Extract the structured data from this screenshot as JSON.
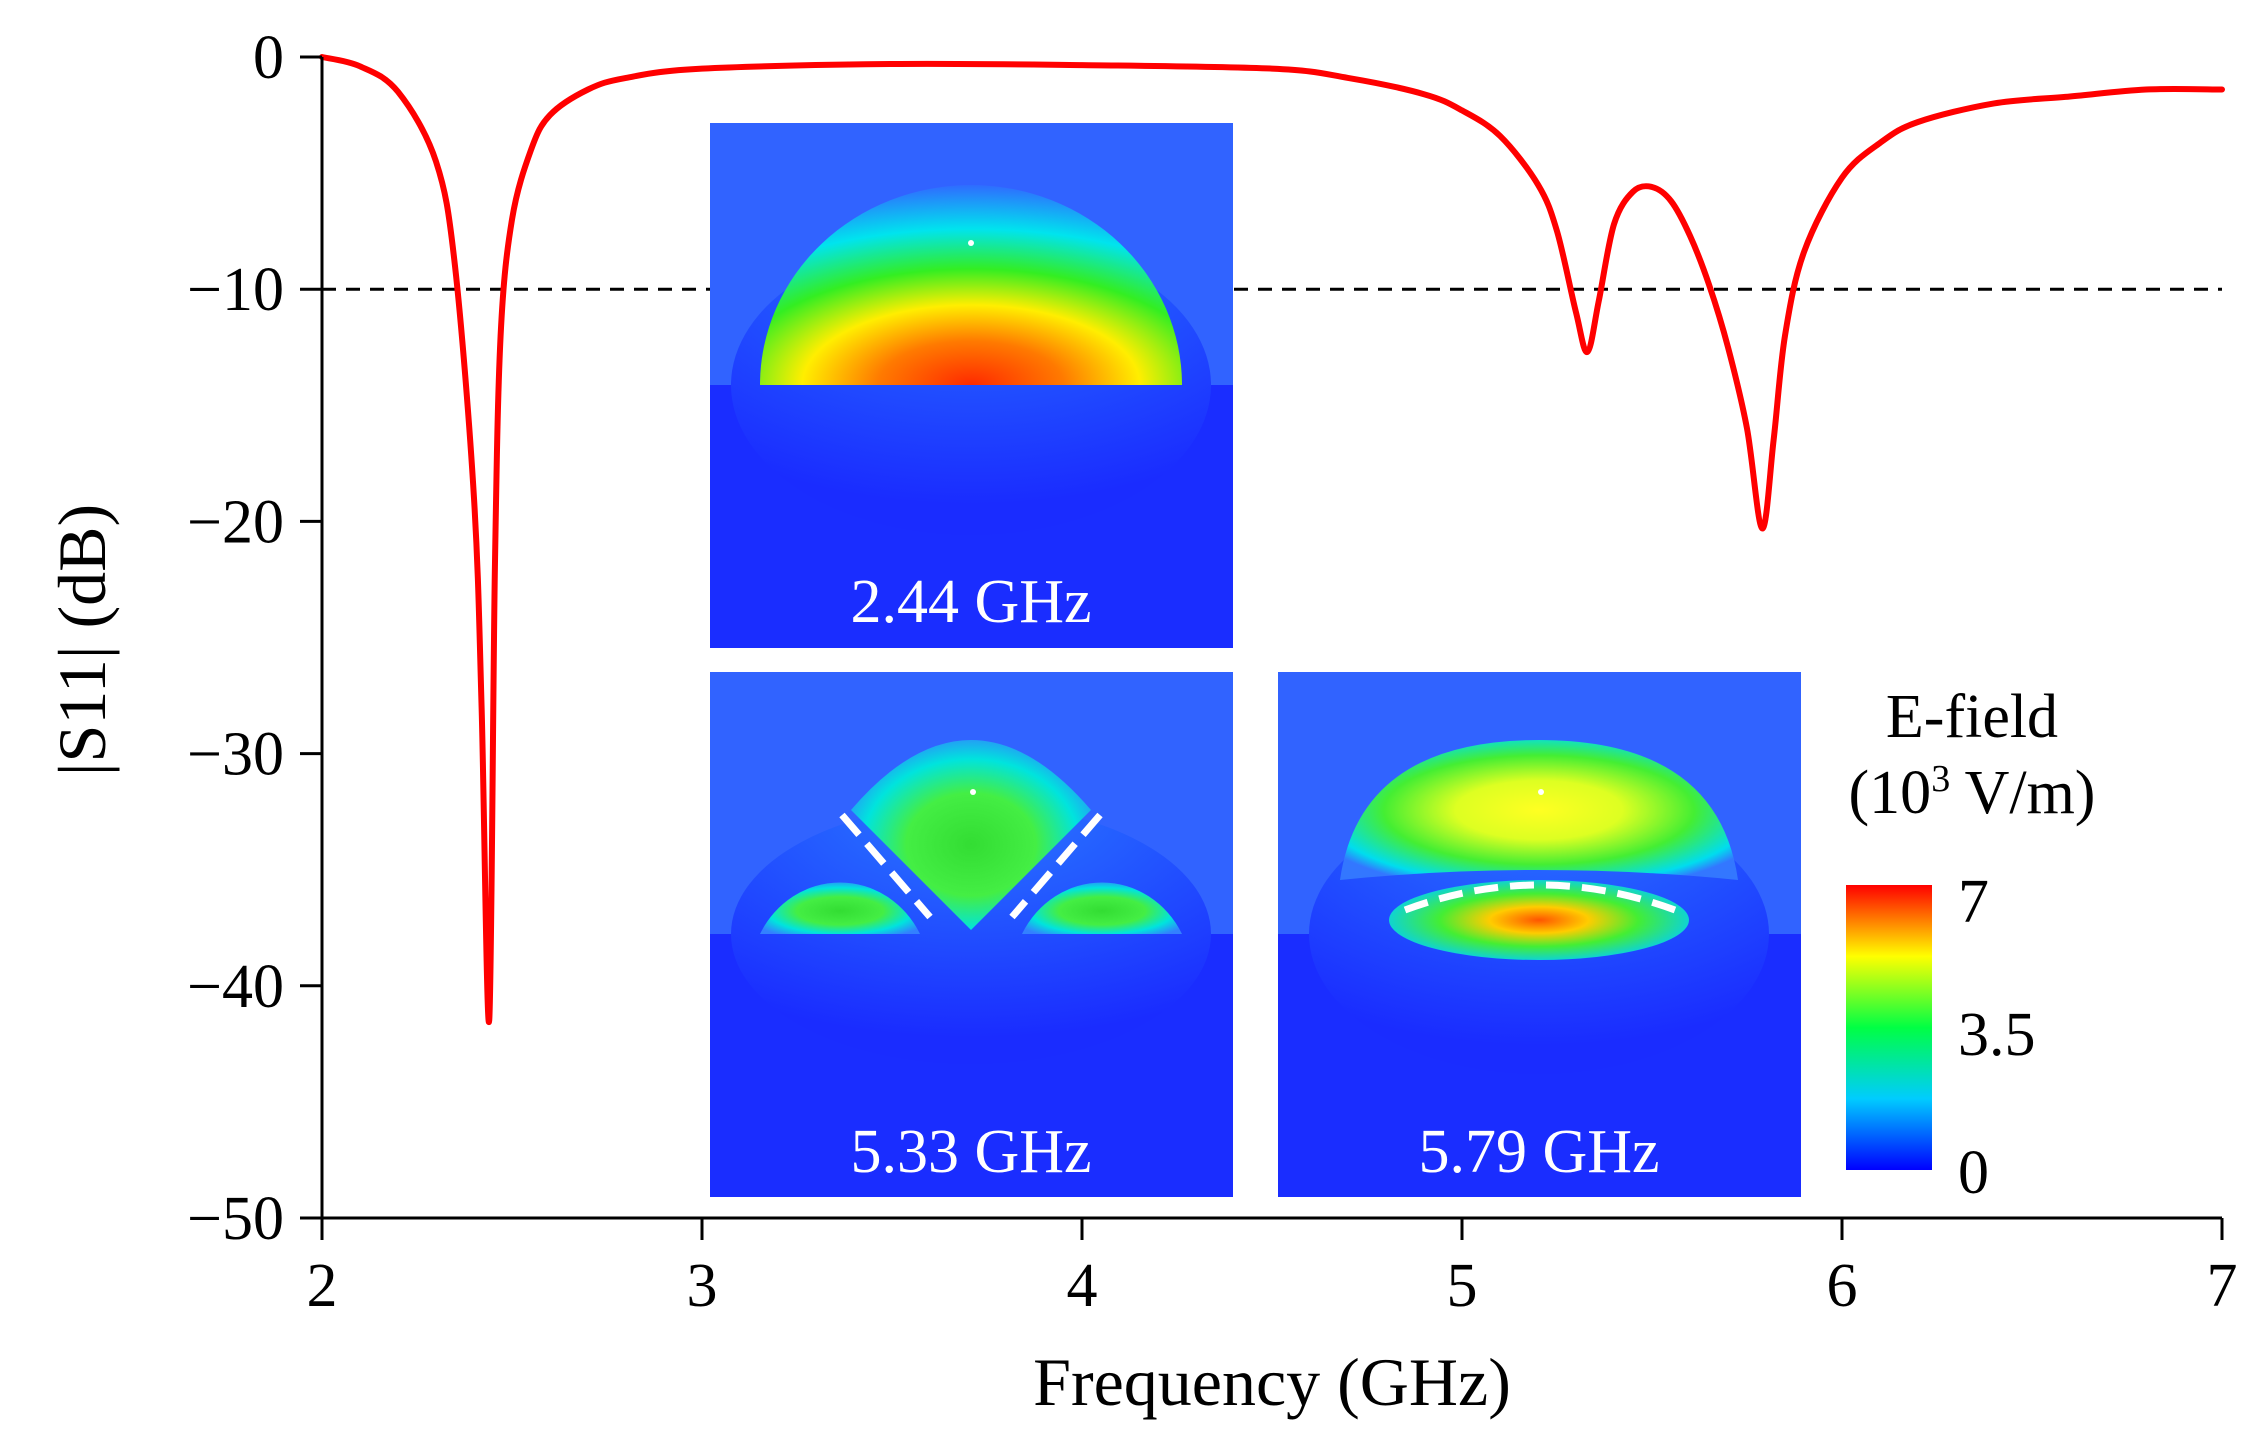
{
  "chart_data": {
    "type": "line",
    "xlabel": "Frequency (GHz)",
    "ylabel": "|S11| (dB)",
    "xlim": [
      2,
      7
    ],
    "ylim": [
      -50,
      0
    ],
    "xticks": [
      2,
      3,
      4,
      5,
      6,
      7
    ],
    "yticks": [
      0,
      -10,
      -20,
      -30,
      -40,
      -50
    ],
    "xtick_labels": [
      "2",
      "3",
      "4",
      "5",
      "6",
      "7"
    ],
    "ytick_labels": [
      "0",
      "−10",
      "−20",
      "−30",
      "−40",
      "−50"
    ],
    "grid": false,
    "reference_line": {
      "y": -10,
      "style": "dashed",
      "color": "#000000"
    },
    "series": [
      {
        "color": "#ff0000",
        "x": [
          2.0,
          2.1,
          2.2,
          2.3,
          2.35,
          2.4,
          2.42,
          2.44,
          2.455,
          2.47,
          2.5,
          2.55,
          2.6,
          2.7,
          2.8,
          3.0,
          3.5,
          4.0,
          4.5,
          4.7,
          4.9,
          5.0,
          5.1,
          5.2,
          5.25,
          5.3,
          5.33,
          5.36,
          5.4,
          5.45,
          5.5,
          5.55,
          5.6,
          5.65,
          5.7,
          5.75,
          5.79,
          5.82,
          5.85,
          5.9,
          6.0,
          6.1,
          6.2,
          6.4,
          6.6,
          6.8,
          7.0
        ],
        "y": [
          0,
          -0.4,
          -1.5,
          -4.5,
          -9,
          -19,
          -28,
          -41.5,
          -22,
          -12,
          -7,
          -4,
          -2.5,
          -1.4,
          -0.9,
          -0.5,
          -0.3,
          -0.35,
          -0.5,
          -0.9,
          -1.6,
          -2.3,
          -3.4,
          -5.5,
          -7.5,
          -11,
          -12.7,
          -10.5,
          -7.2,
          -5.8,
          -5.6,
          -6.2,
          -7.7,
          -9.8,
          -12.5,
          -16,
          -20.3,
          -16.5,
          -12,
          -8.4,
          -5.2,
          -3.7,
          -2.8,
          -2.0,
          -1.7,
          -1.4,
          -1.4
        ]
      }
    ],
    "insets": [
      {
        "label": "2.44 GHz"
      },
      {
        "label": "5.33 GHz"
      },
      {
        "label": "5.79 GHz"
      }
    ],
    "colorbar": {
      "title_line1": "E-field",
      "title_line2_prefix": "(10",
      "title_line2_exp": "3",
      "title_line2_suffix": " V/m)",
      "max_label": "7",
      "mid_label": "3.5",
      "min_label": "0",
      "colors": [
        "#0000ff",
        "#00ccff",
        "#00ff44",
        "#ffff00",
        "#ff0000"
      ]
    }
  }
}
